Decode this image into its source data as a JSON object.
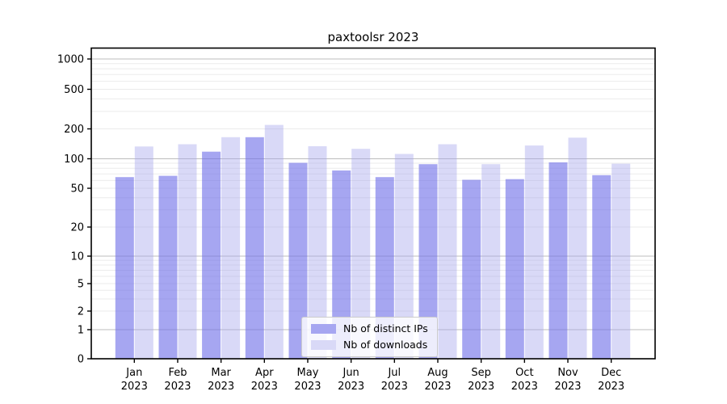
{
  "title": "paxtoolsr 2023",
  "chart_data": {
    "type": "bar",
    "title": "paxtoolsr 2023",
    "categories": [
      "Jan",
      "Feb",
      "Mar",
      "Apr",
      "May",
      "Jun",
      "Jul",
      "Aug",
      "Sep",
      "Oct",
      "Nov",
      "Dec"
    ],
    "year_label": "2023",
    "series": [
      {
        "name": "Nb of distinct IPs",
        "values": [
          65,
          67,
          118,
          165,
          91,
          76,
          65,
          88,
          61,
          62,
          92,
          68
        ],
        "bar_fill": "rgba(112,112,232,0.62)",
        "legend_color": "#a6a6f1"
      },
      {
        "name": "Nb of downloads",
        "values": [
          133,
          140,
          165,
          219,
          134,
          126,
          112,
          140,
          88,
          136,
          163,
          89
        ],
        "bar_fill": "rgba(165,165,235,0.42)",
        "legend_color": "#d9d9f7"
      }
    ],
    "y_axis": {
      "scale": "log",
      "ticks": [
        0,
        1,
        2,
        5,
        10,
        20,
        50,
        100,
        200,
        500,
        1000
      ],
      "ylim": [
        0,
        1000
      ]
    },
    "grid": true,
    "legend_position": "lower center",
    "colors": {
      "major_gridline": "#bdbdbd",
      "minor_gridline": "#ebebeb",
      "axis": "#000000"
    }
  }
}
